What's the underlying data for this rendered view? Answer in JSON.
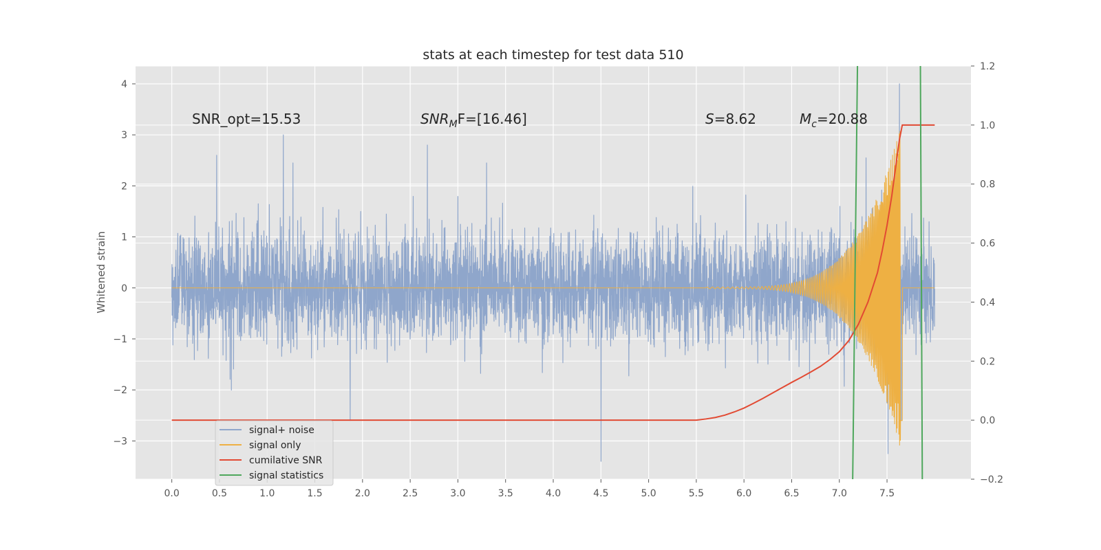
{
  "chart_data": {
    "type": "line",
    "title": "stats at each timestep for test data 510",
    "ylabel": "Whitened strain",
    "xlim": [
      -0.38,
      8.38
    ],
    "ylim": [
      -3.75,
      4.35
    ],
    "y2lim": [
      -0.2,
      1.2
    ],
    "xticks": [
      "0.0",
      "0.5",
      "1.0",
      "1.5",
      "2.0",
      "2.5",
      "3.0",
      "3.5",
      "4.0",
      "4.5",
      "5.0",
      "5.5",
      "6.0",
      "6.5",
      "7.0",
      "7.5"
    ],
    "yticks": [
      "−3",
      "−2",
      "−1",
      "0",
      "1",
      "2",
      "3",
      "4"
    ],
    "y2ticks": [
      "−0.2",
      "0.0",
      "0.2",
      "0.4",
      "0.6",
      "0.8",
      "1.0",
      "1.2"
    ],
    "grid": true,
    "legend_position": "lower-left",
    "annotations": {
      "snr_opt": "SNR_opt=15.53",
      "snr_mf_sym": "SNR",
      "snr_mf_sub": "M",
      "snr_mf_rest": "F=[16.46]",
      "s_sym": "S",
      "s_rest": "=8.62",
      "mc_sym": "M",
      "mc_sub": "c",
      "mc_rest": "=20.88"
    },
    "series": [
      {
        "name": "signal+ noise",
        "color": "#8fa6cb",
        "description_range": {
          "x": [
            0.0,
            8.0
          ],
          "typical_amplitude": 1.0,
          "max": 4.0,
          "min": -3.4
        },
        "peaks": [
          {
            "x": 0.47,
            "y": 2.6
          },
          {
            "x": 1.17,
            "y": 3.0
          },
          {
            "x": 1.27,
            "y": 2.45
          },
          {
            "x": 2.68,
            "y": 2.8
          },
          {
            "x": 3.3,
            "y": 2.45
          },
          {
            "x": 4.5,
            "y": -3.4
          },
          {
            "x": 1.87,
            "y": -2.6
          },
          {
            "x": 7.28,
            "y": 2.55
          },
          {
            "x": 7.51,
            "y": -3.25
          },
          {
            "x": 7.63,
            "y": 4.0
          },
          {
            "x": 7.65,
            "y": -2.6
          }
        ]
      },
      {
        "name": "signal only",
        "color": "#eeb043",
        "chirp": {
          "start": 5.6,
          "merger": 7.65,
          "peak_amplitude": 3.2
        }
      },
      {
        "name": "cumilative SNR",
        "color": "#e24a33",
        "axis": "right",
        "x": [
          0.0,
          5.5,
          5.6,
          5.7,
          5.8,
          5.9,
          6.0,
          6.1,
          6.2,
          6.3,
          6.4,
          6.5,
          6.6,
          6.7,
          6.8,
          6.9,
          7.0,
          7.1,
          7.2,
          7.3,
          7.4,
          7.45,
          7.5,
          7.55,
          7.6,
          7.63,
          7.66,
          7.8,
          8.0
        ],
        "y": [
          0.0,
          0.0,
          0.004,
          0.009,
          0.017,
          0.028,
          0.041,
          0.057,
          0.074,
          0.092,
          0.11,
          0.128,
          0.145,
          0.163,
          0.182,
          0.205,
          0.232,
          0.27,
          0.325,
          0.4,
          0.5,
          0.575,
          0.66,
          0.76,
          0.88,
          0.95,
          1.0,
          1.0,
          1.0
        ]
      },
      {
        "name": "signal statistics",
        "color": "#4ea75c",
        "axis": "right",
        "lines": [
          {
            "x": [
              7.14,
              7.19
            ],
            "y": [
              -0.2,
              1.2
            ]
          },
          {
            "x": [
              7.85,
              7.87
            ],
            "y": [
              1.2,
              -0.2
            ]
          }
        ]
      }
    ],
    "legend": [
      "signal+ noise",
      "signal only",
      "cumilative SNR",
      "signal statistics"
    ]
  }
}
